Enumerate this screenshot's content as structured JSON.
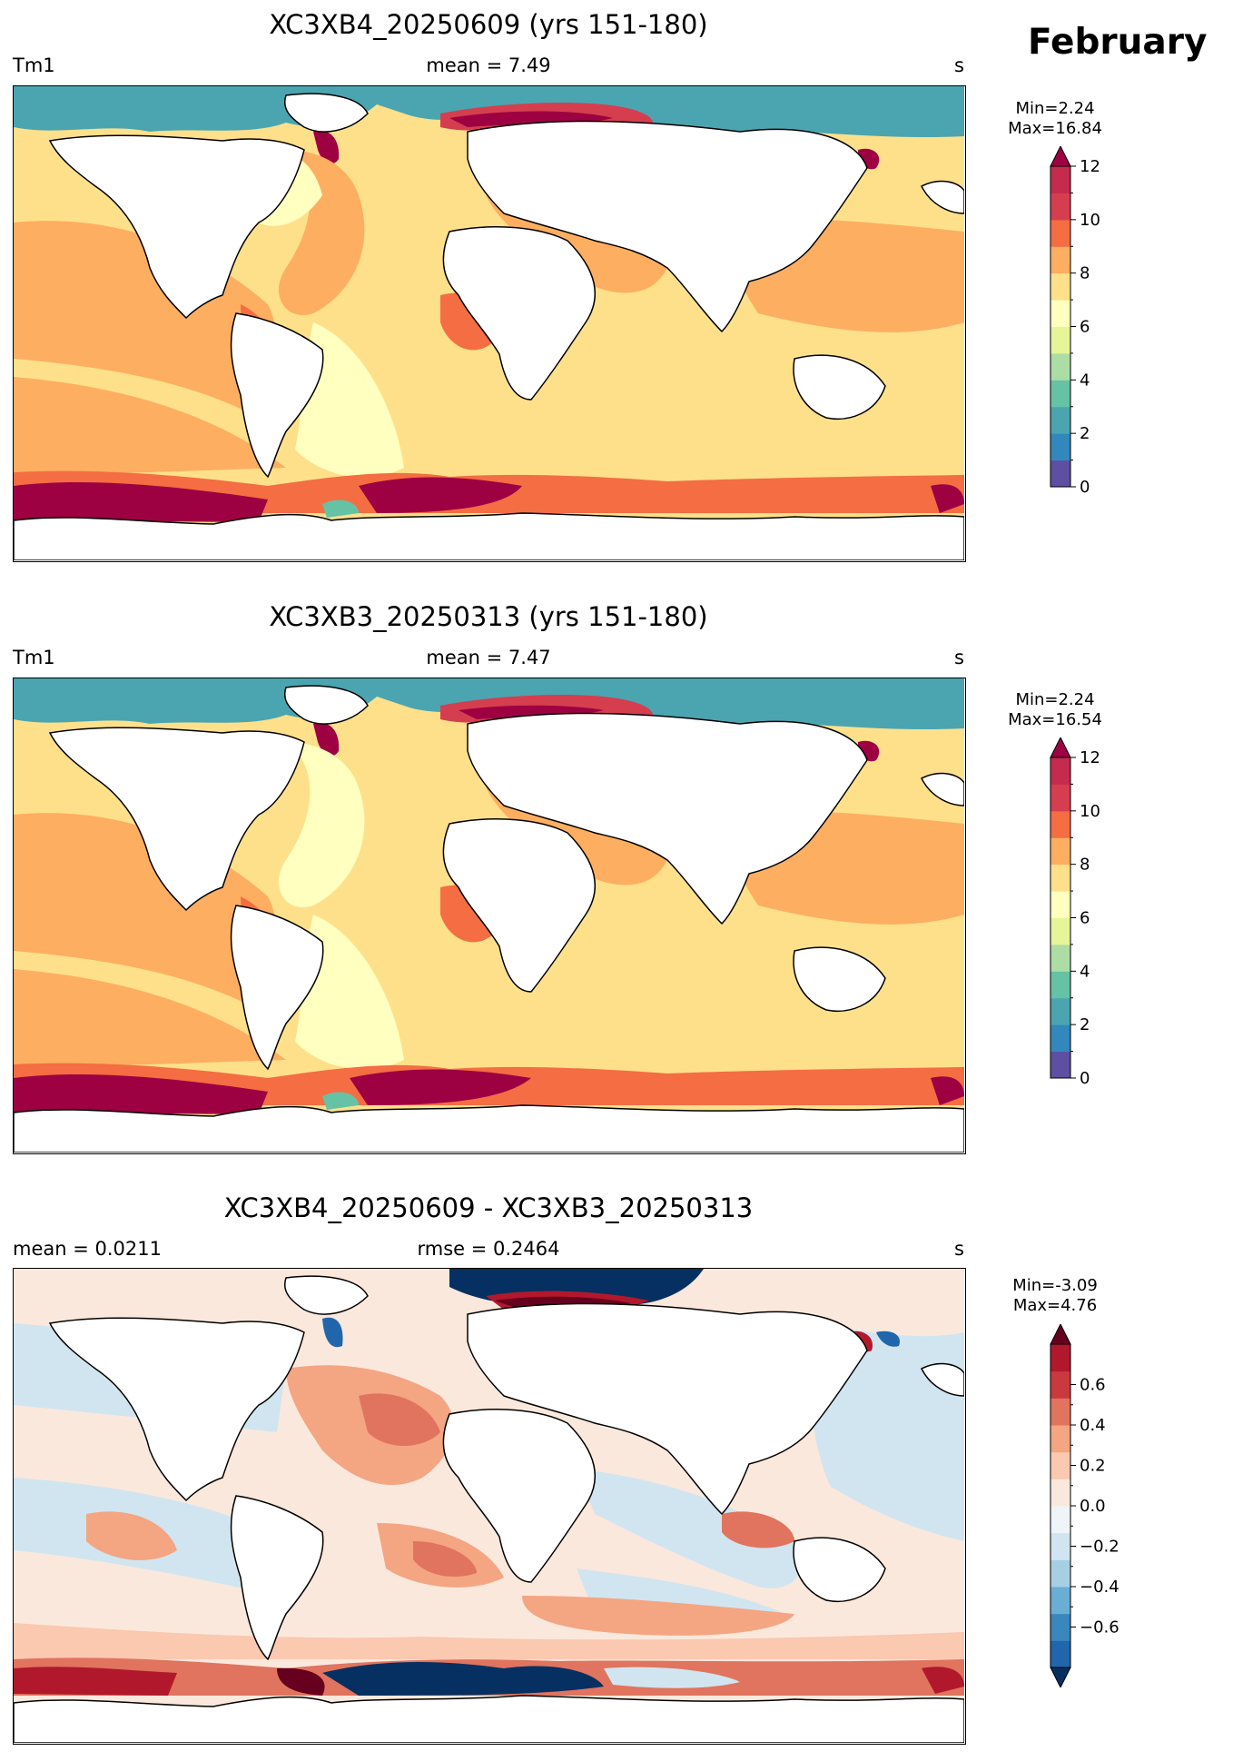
{
  "month": "February",
  "panels": [
    {
      "title": "XC3XB4_20250609 (yrs 151-180)",
      "left_label": "Tm1",
      "center_label": "mean = 7.49",
      "right_label": "s",
      "min_text": "Min=2.24",
      "max_text": "Max=16.84",
      "colorbar": {
        "ticks": [
          "0",
          "2",
          "4",
          "6",
          "8",
          "10",
          "12"
        ],
        "colors": [
          "#5e4fa2",
          "#3288bd",
          "#4aa5b0",
          "#66c2a5",
          "#abdda4",
          "#e6f598",
          "#ffffbf",
          "#fee08b",
          "#fdae61",
          "#f46d43",
          "#d53e4f",
          "#c42b4e"
        ],
        "extend": "max",
        "extend_color": "#9e0142"
      }
    },
    {
      "title": "XC3XB3_20250313 (yrs 151-180)",
      "left_label": "Tm1",
      "center_label": "mean = 7.47",
      "right_label": "s",
      "min_text": "Min=2.24",
      "max_text": "Max=16.54",
      "colorbar": {
        "ticks": [
          "0",
          "2",
          "4",
          "6",
          "8",
          "10",
          "12"
        ],
        "colors": [
          "#5e4fa2",
          "#3288bd",
          "#4aa5b0",
          "#66c2a5",
          "#abdda4",
          "#e6f598",
          "#ffffbf",
          "#fee08b",
          "#fdae61",
          "#f46d43",
          "#d53e4f",
          "#c42b4e"
        ],
        "extend": "max",
        "extend_color": "#9e0142"
      }
    },
    {
      "title": "XC3XB4_20250609 - XC3XB3_20250313",
      "left_label": "mean = 0.0211",
      "center_label": "rmse = 0.2464",
      "right_label": "s",
      "min_text": "Min=-3.09",
      "max_text": "Max=4.76",
      "colorbar": {
        "ticks": [
          "−0.6",
          "−0.4",
          "−0.2",
          "0.0",
          "0.2",
          "0.4",
          "0.6"
        ],
        "colors": [
          "#2166ac",
          "#3a87be",
          "#6aaed3",
          "#a6cfe4",
          "#d1e5f0",
          "#eef4f8",
          "#fbe8dc",
          "#fbc8b0",
          "#f4a582",
          "#e0745e",
          "#c93a3f",
          "#b2182b"
        ],
        "extend": "both",
        "extend_color_low": "#053061",
        "extend_color_high": "#67001f"
      }
    }
  ],
  "colors": {
    "land": "#ffffff",
    "coast": "#000000"
  }
}
